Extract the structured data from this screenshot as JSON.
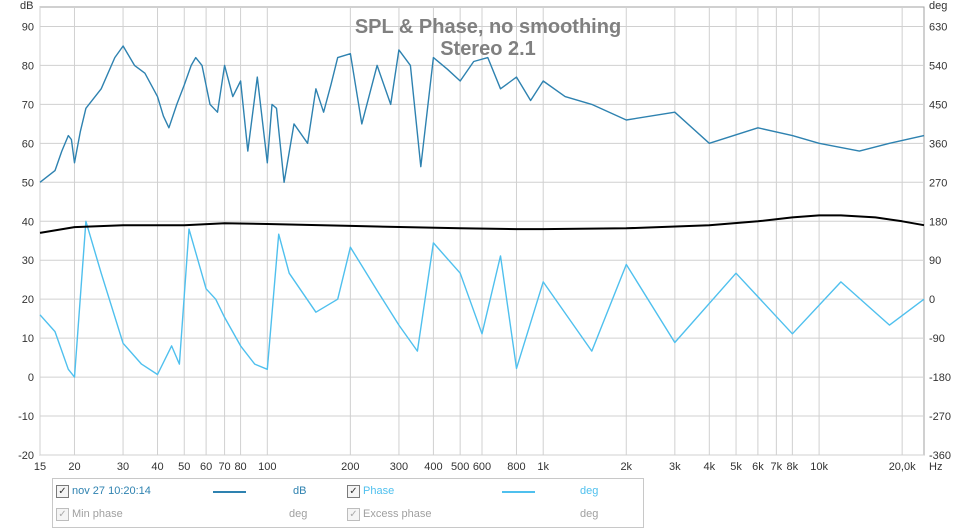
{
  "chart_data": {
    "type": "line",
    "title": "SPL & Phase, no smoothing",
    "subtitle": "Stereo 2.1",
    "y_left_unit": "dB",
    "y_right_unit": "deg",
    "x_unit": "Hz",
    "x_scale": "log",
    "xlim": [
      15,
      24000
    ],
    "ylim_left": [
      -20,
      95
    ],
    "ylim_right": [
      -360,
      675
    ],
    "left_ticks": [
      -20,
      -10,
      0,
      10,
      20,
      30,
      40,
      50,
      60,
      70,
      80,
      90
    ],
    "right_ticks": [
      {
        "label": "-360",
        "value": -360
      },
      {
        "label": "-270",
        "value": -270
      },
      {
        "label": "-180",
        "value": -180
      },
      {
        "label": "-90",
        "value": -90
      },
      {
        "label": "0",
        "value": 0
      },
      {
        "label": "90",
        "value": 90
      },
      {
        "label": "180",
        "value": 180
      },
      {
        "label": "270",
        "value": 270
      },
      {
        "label": "360",
        "value": 360
      },
      {
        "label": "450",
        "value": 450
      },
      {
        "label": "540",
        "value": 540
      },
      {
        "label": "630",
        "value": 630
      }
    ],
    "x_ticks": [
      {
        "label": "15",
        "value": 15
      },
      {
        "label": "20",
        "value": 20
      },
      {
        "label": "30",
        "value": 30
      },
      {
        "label": "40",
        "value": 40
      },
      {
        "label": "50",
        "value": 50
      },
      {
        "label": "60",
        "value": 60
      },
      {
        "label": "70",
        "value": 70
      },
      {
        "label": "80",
        "value": 80
      },
      {
        "label": "100",
        "value": 100
      },
      {
        "label": "200",
        "value": 200
      },
      {
        "label": "300",
        "value": 300
      },
      {
        "label": "400",
        "value": 400
      },
      {
        "label": "500",
        "value": 500
      },
      {
        "label": "600",
        "value": 600
      },
      {
        "label": "800",
        "value": 800
      },
      {
        "label": "1k",
        "value": 1000
      },
      {
        "label": "2k",
        "value": 2000
      },
      {
        "label": "3k",
        "value": 3000
      },
      {
        "label": "4k",
        "value": 4000
      },
      {
        "label": "5k",
        "value": 5000
      },
      {
        "label": "6k",
        "value": 6000
      },
      {
        "label": "7k",
        "value": 7000
      },
      {
        "label": "8k",
        "value": 8000
      },
      {
        "label": "10k",
        "value": 10000
      },
      {
        "label": "20,0k",
        "value": 20000
      }
    ],
    "grid": true,
    "series": [
      {
        "name": "nov 27 10:20:14",
        "axis": "left",
        "unit": "dB",
        "color": "#2e82b0",
        "x": [
          15,
          17,
          18,
          19,
          19.5,
          20,
          21,
          22,
          25,
          28,
          30,
          33,
          36,
          40,
          42,
          44,
          47,
          50,
          53,
          55,
          58,
          62,
          66,
          70,
          75,
          80,
          85,
          92,
          100,
          104,
          108,
          115,
          125,
          140,
          150,
          160,
          170,
          180,
          200,
          220,
          250,
          280,
          300,
          330,
          360,
          400,
          450,
          500,
          560,
          630,
          700,
          800,
          900,
          1000,
          1200,
          1500,
          2000,
          3000,
          4000,
          6000,
          8000,
          10000,
          14000,
          18000,
          24000
        ],
        "values": [
          50,
          53,
          58,
          62,
          61,
          55,
          63,
          69,
          74,
          82,
          85,
          80,
          78,
          72,
          67,
          64,
          70,
          75,
          80,
          82,
          80,
          70,
          68,
          80,
          72,
          76,
          58,
          77,
          55,
          70,
          69,
          50,
          65,
          60,
          74,
          68,
          75,
          82,
          83,
          65,
          80,
          70,
          84,
          80,
          54,
          82,
          79,
          76,
          81,
          82,
          74,
          77,
          71,
          76,
          72,
          70,
          66,
          68,
          60,
          64,
          62,
          60,
          58,
          60,
          62
        ]
      },
      {
        "name": "Phase",
        "axis": "right",
        "unit": "deg",
        "color": "#4fc0ee",
        "x": [
          15,
          17,
          19,
          20,
          22,
          25,
          30,
          35,
          40,
          45,
          48,
          52,
          55,
          60,
          65,
          70,
          80,
          90,
          100,
          110,
          120,
          150,
          180,
          200,
          250,
          300,
          350,
          400,
          500,
          600,
          700,
          800,
          1000,
          1500,
          2000,
          3000,
          5000,
          8000,
          12000,
          18000,
          24000
        ],
        "values": [
          -36,
          -75,
          -162,
          -180,
          180,
          60,
          -102,
          -150,
          -174,
          -108,
          -150,
          162,
          108,
          24,
          0,
          -42,
          -108,
          -150,
          -162,
          150,
          60,
          -30,
          0,
          120,
          20,
          -60,
          -120,
          130,
          60,
          -80,
          100,
          -160,
          40,
          -120,
          80,
          -100,
          60,
          -80,
          40,
          -60,
          0
        ]
      },
      {
        "name": "",
        "axis": "left",
        "unit": "dB",
        "color": "#000000",
        "x": [
          15,
          20,
          30,
          50,
          70,
          100,
          200,
          500,
          800,
          1000,
          2000,
          4000,
          6000,
          8000,
          10000,
          12000,
          16000,
          20000,
          24000
        ],
        "values": [
          37,
          38.5,
          39,
          39,
          39.5,
          39.3,
          38.8,
          38.2,
          38,
          38,
          38.2,
          39,
          40,
          41,
          41.5,
          41.5,
          41,
          40,
          39
        ]
      }
    ]
  },
  "legend": {
    "items": [
      {
        "checked": true,
        "name": "nov 27 10:20:14",
        "unit": "dB",
        "color": "#2e82b0"
      },
      {
        "checked": true,
        "name": "Phase",
        "unit": "deg",
        "color": "#4fc0ee"
      },
      {
        "checked": true,
        "name": "Min phase",
        "unit": "deg",
        "color": "#a0a0a0"
      },
      {
        "checked": true,
        "name": "Excess phase",
        "unit": "deg",
        "color": "#a0a0a0"
      }
    ]
  }
}
